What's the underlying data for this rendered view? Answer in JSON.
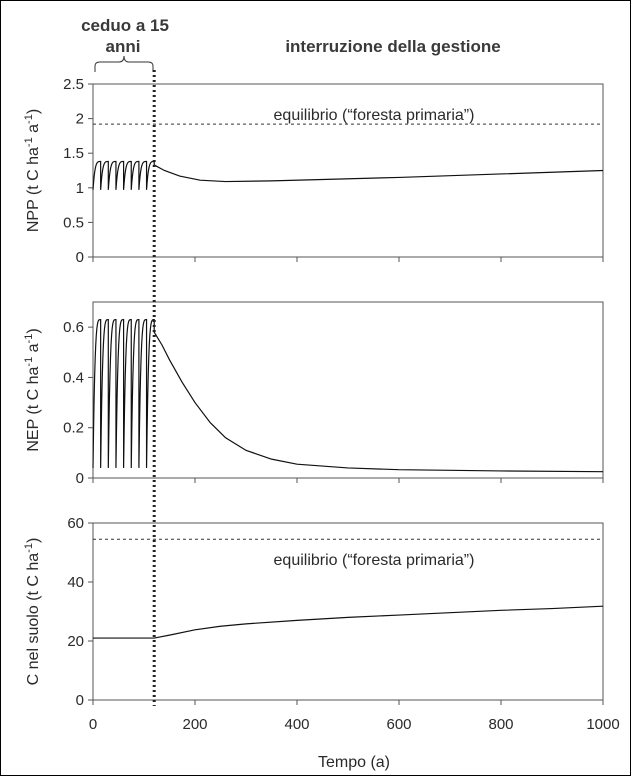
{
  "header": {
    "left_line1": "ceduo a 15",
    "left_line2": "anni",
    "right": "interruzione della gestione"
  },
  "xaxis": {
    "label": "Tempo (a)",
    "ticks": [
      "0",
      "200",
      "400",
      "600",
      "800",
      "1000"
    ]
  },
  "annotations": {
    "equilibrium": "equilibrio (“foresta primaria”)"
  },
  "chart_data": [
    {
      "type": "line",
      "id": "npp",
      "ylabel": "NPP (t C  ha-1 a-1)",
      "ylabel_parts": [
        "NPP (t C  ha",
        "-1",
        " a",
        "-1",
        ")"
      ],
      "xlim": [
        0,
        1000
      ],
      "ylim": [
        0,
        2.5
      ],
      "yticks": [
        "0",
        "0.5",
        "1",
        "1.5",
        "2",
        "2.5"
      ],
      "yticks_values": [
        0,
        0.5,
        1,
        1.5,
        2,
        2.5
      ],
      "equilibrium": 1.92,
      "coppice": {
        "period": 15,
        "start": 0,
        "end": 120,
        "low": 0.97,
        "high": 1.38
      },
      "recovery": [
        [
          120,
          1.33
        ],
        [
          140,
          1.25
        ],
        [
          170,
          1.17
        ],
        [
          210,
          1.11
        ],
        [
          260,
          1.09
        ],
        [
          350,
          1.1
        ],
        [
          450,
          1.12
        ],
        [
          600,
          1.15
        ],
        [
          800,
          1.2
        ],
        [
          1000,
          1.25
        ]
      ]
    },
    {
      "type": "line",
      "id": "nep",
      "ylabel": "NEP (t C  ha-1 a-1)",
      "ylabel_parts": [
        "NEP (t C  ha",
        "-1",
        " a",
        "-1",
        ")"
      ],
      "xlim": [
        0,
        1000
      ],
      "ylim": [
        0,
        0.7
      ],
      "yticks": [
        "0",
        "0.2",
        "0.4",
        "0.6"
      ],
      "yticks_values": [
        0,
        0.2,
        0.4,
        0.6
      ],
      "coppice": {
        "period": 15,
        "start": 0,
        "end": 120,
        "low": 0.04,
        "high": 0.63
      },
      "recovery": [
        [
          120,
          0.58
        ],
        [
          135,
          0.53
        ],
        [
          150,
          0.47
        ],
        [
          175,
          0.38
        ],
        [
          200,
          0.3
        ],
        [
          230,
          0.22
        ],
        [
          260,
          0.16
        ],
        [
          300,
          0.11
        ],
        [
          350,
          0.075
        ],
        [
          400,
          0.055
        ],
        [
          500,
          0.04
        ],
        [
          600,
          0.033
        ],
        [
          800,
          0.028
        ],
        [
          1000,
          0.025
        ]
      ]
    },
    {
      "type": "line",
      "id": "soil",
      "ylabel": "C nel suolo (t C ha-1)",
      "ylabel_parts": [
        "C nel suolo (t C ha",
        "-1",
        ")"
      ],
      "xlim": [
        0,
        1000
      ],
      "ylim": [
        0,
        60
      ],
      "yticks": [
        "0",
        "20",
        "40",
        "60"
      ],
      "yticks_values": [
        0,
        20,
        40,
        60
      ],
      "equilibrium": 54.5,
      "series": [
        [
          0,
          21
        ],
        [
          120,
          21
        ],
        [
          150,
          22
        ],
        [
          200,
          23.8
        ],
        [
          250,
          25
        ],
        [
          300,
          25.8
        ],
        [
          400,
          27
        ],
        [
          500,
          28
        ],
        [
          600,
          28.8
        ],
        [
          700,
          29.6
        ],
        [
          800,
          30.4
        ],
        [
          900,
          31
        ],
        [
          1000,
          31.8
        ]
      ]
    }
  ],
  "cut_year": 120
}
